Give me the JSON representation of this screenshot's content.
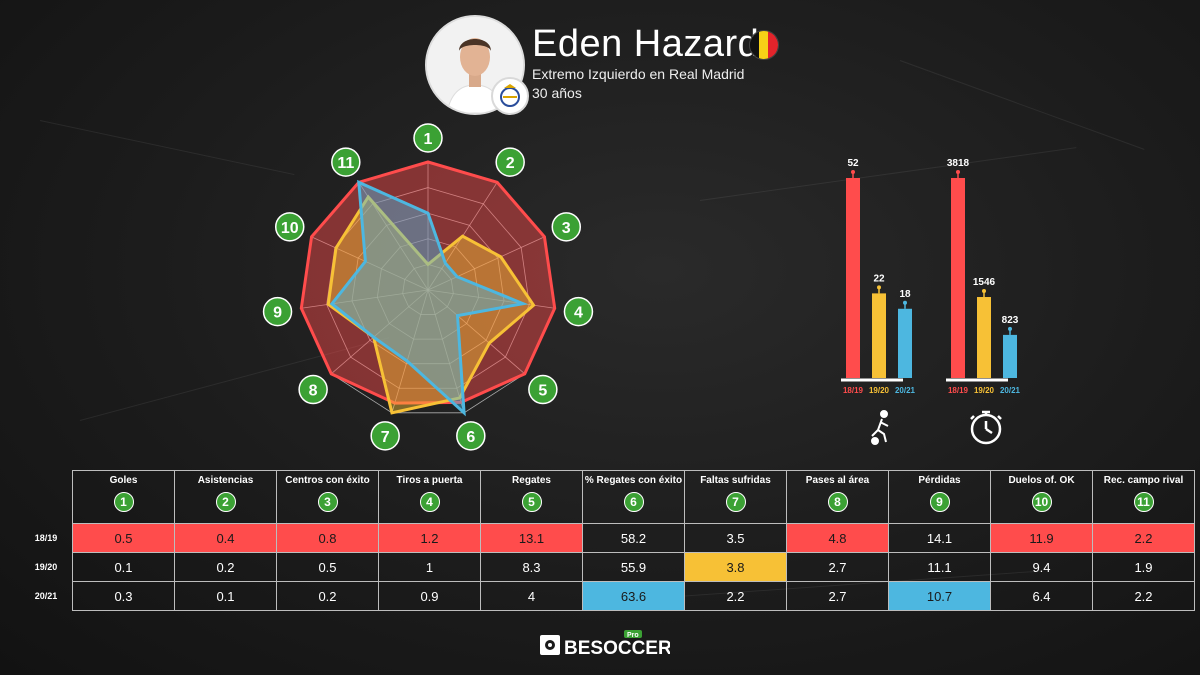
{
  "player": {
    "name": "Eden Hazard",
    "position": "Extremo Izquierdo en Real Madrid",
    "age": "30 años"
  },
  "colors": {
    "s1819": "#ff4c4c",
    "s1920": "#f7c136",
    "s2021": "#4db7e0",
    "badge": "#3ba134"
  },
  "brand": {
    "label": "BESOCCER",
    "sup": "Pro"
  },
  "chart_data": [
    {
      "type": "radar",
      "axes": [
        "1",
        "2",
        "3",
        "4",
        "5",
        "6",
        "7",
        "8",
        "9",
        "10",
        "11"
      ],
      "series": [
        {
          "name": "18/19",
          "color": "#ff4c4c"
        },
        {
          "name": "19/20",
          "color": "#f7c136"
        },
        {
          "name": "20/21",
          "color": "#4db7e0"
        }
      ]
    },
    {
      "type": "bar",
      "categories": [
        "18/19",
        "19/20",
        "20/21"
      ],
      "values": [
        52,
        22,
        18
      ],
      "labels": [
        "52",
        "22",
        "18"
      ],
      "icon": "player-dribbling-icon"
    },
    {
      "type": "bar",
      "categories": [
        "18/19",
        "19/20",
        "20/21"
      ],
      "values": [
        3818,
        1546,
        823
      ],
      "labels": [
        "3818",
        "1546",
        "823"
      ],
      "icon": "stopwatch-icon"
    },
    {
      "type": "table",
      "columns": [
        "Goles",
        "Asistencias",
        "Centros con éxito",
        "Tiros a puerta",
        "Regates",
        "% Regates con éxito",
        "Faltas sufridas",
        "Pases al área",
        "Pérdidas",
        "Duelos of. OK",
        "Rec. campo rival"
      ],
      "column_numbers": [
        "1",
        "2",
        "3",
        "4",
        "5",
        "6",
        "7",
        "8",
        "9",
        "10",
        "11"
      ],
      "rows": [
        {
          "season": "18/19",
          "values": [
            "0.5",
            "0.4",
            "0.8",
            "1.2",
            "13.1",
            "58.2",
            "3.5",
            "4.8",
            "14.1",
            "11.9",
            "2.2"
          ],
          "highlight": [
            true,
            true,
            true,
            true,
            true,
            false,
            false,
            true,
            false,
            true,
            true
          ]
        },
        {
          "season": "19/20",
          "values": [
            "0.1",
            "0.2",
            "0.5",
            "1",
            "8.3",
            "55.9",
            "3.8",
            "2.7",
            "11.1",
            "9.4",
            "1.9"
          ],
          "highlight": [
            false,
            false,
            false,
            false,
            false,
            false,
            true,
            false,
            false,
            false,
            false
          ]
        },
        {
          "season": "20/21",
          "values": [
            "0.3",
            "0.1",
            "0.2",
            "0.9",
            "4",
            "63.6",
            "2.2",
            "2.7",
            "10.7",
            "6.4",
            "2.2"
          ],
          "highlight": [
            false,
            false,
            false,
            false,
            false,
            true,
            false,
            false,
            true,
            false,
            false
          ]
        }
      ]
    }
  ]
}
